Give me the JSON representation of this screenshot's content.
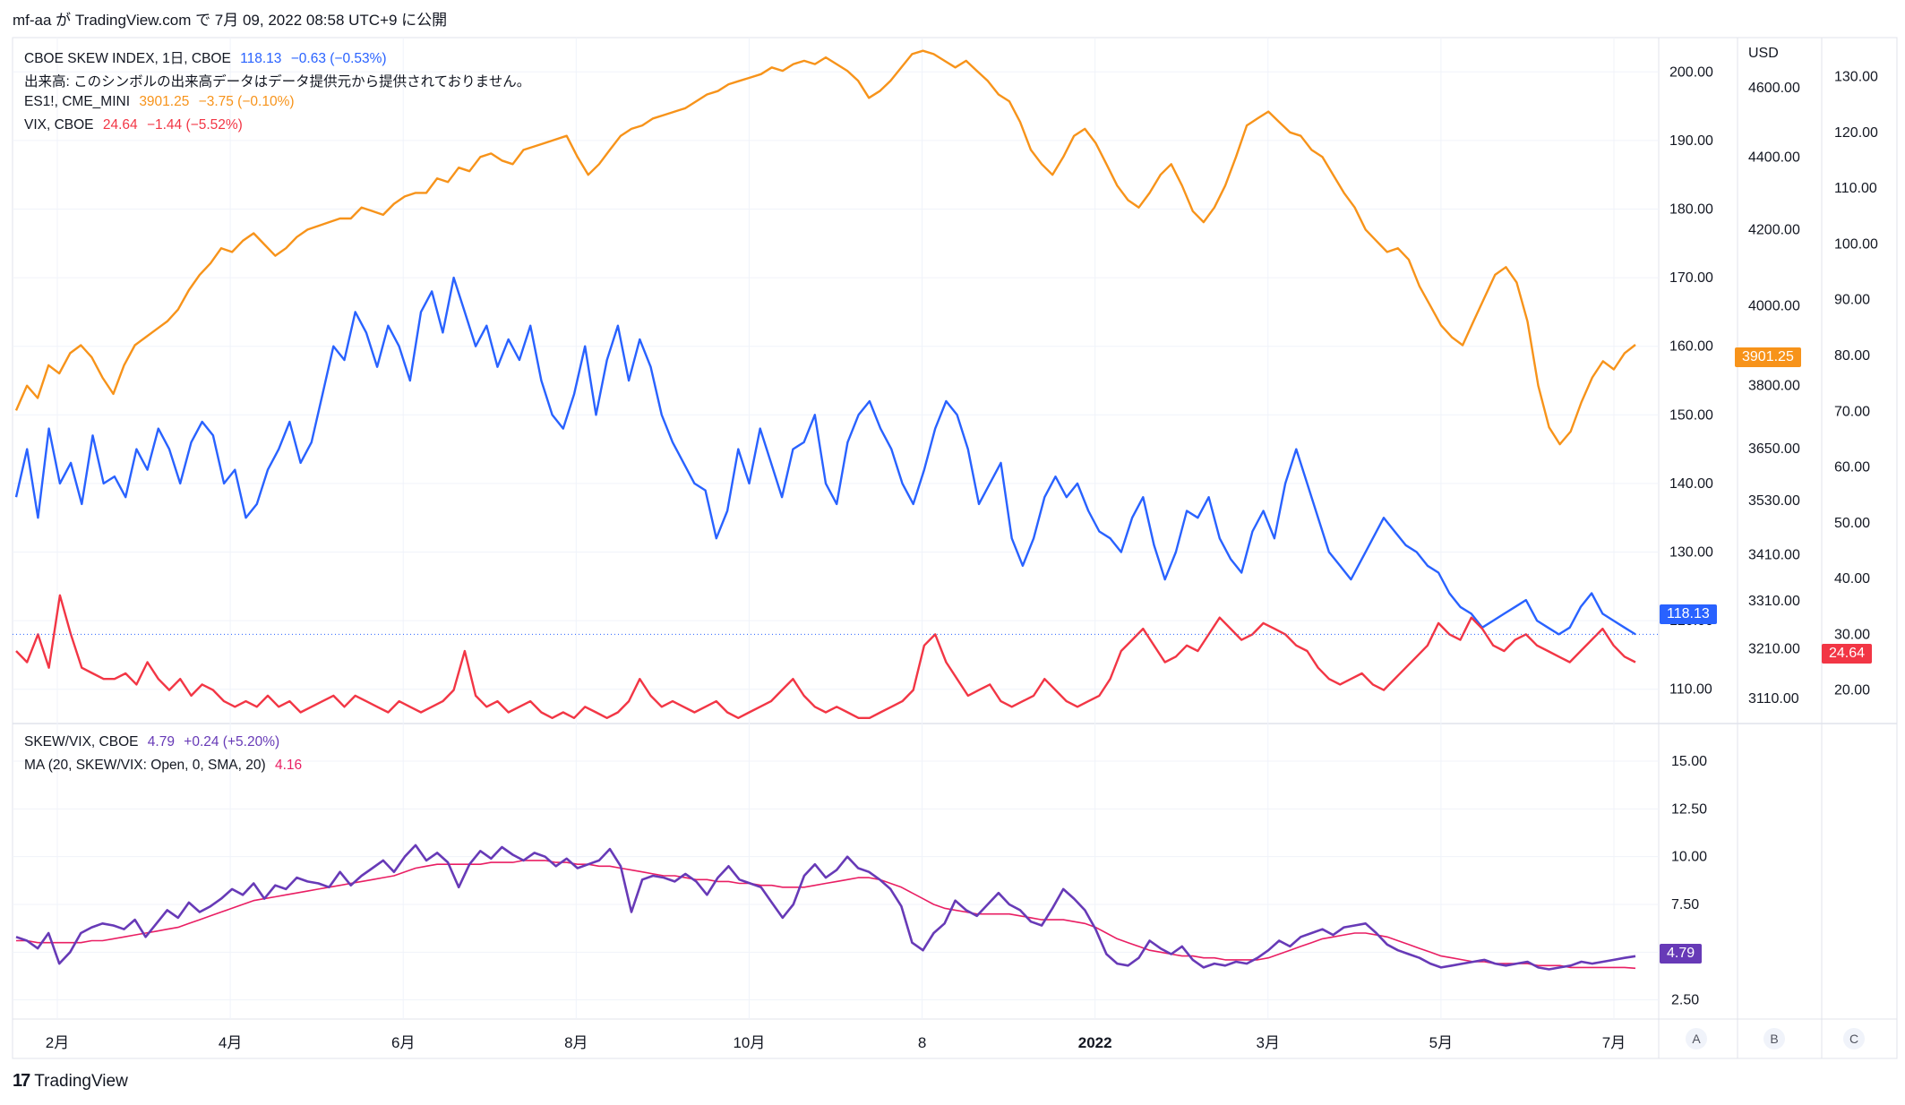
{
  "header": {
    "text": "mf-aa が TradingView.com で 7月 09, 2022 08:58 UTC+9 に公開"
  },
  "footer": {
    "brand": "TradingView",
    "logo_icon": "tradingview-logo-icon"
  },
  "legend": {
    "skew": {
      "name": "CBOE SKEW INDEX, 1日, CBOE",
      "value": "118.13",
      "change": "−0.63 (−0.53%)"
    },
    "volume_note": "出来高: このシンボルの出来高データはデータ提供元から提供されておりません。",
    "es": {
      "name": "ES1!, CME_MINI",
      "value": "3901.25",
      "change": "−3.75 (−0.10%)"
    },
    "vix": {
      "name": "VIX, CBOE",
      "value": "24.64",
      "change": "−1.44 (−5.52%)"
    },
    "ratio": {
      "name": "SKEW/VIX, CBOE",
      "value": "4.79",
      "change": "+0.24 (+5.20%)"
    },
    "ma": {
      "name": "MA (20, SKEW/VIX: Open, 0, SMA, 20)",
      "value": "4.16"
    }
  },
  "colors": {
    "skew": "#2962ff",
    "es": "#f7931a",
    "vix": "#f23645",
    "ratio": "#673ab7",
    "ma": "#e91e63",
    "grid": "#f0f3fa",
    "axis_text": "#131722"
  },
  "axes": {
    "usd_label": "USD",
    "skew_ticks": [
      "200.00",
      "190.00",
      "180.00",
      "170.00",
      "160.00",
      "150.00",
      "140.00",
      "130.00",
      "120.00",
      "110.00"
    ],
    "es_ticks": [
      "4600.00",
      "4400.00",
      "4200.00",
      "4000.00",
      "3800.00",
      "3650.00",
      "3530.00",
      "3410.00",
      "3310.00",
      "3210.00",
      "3110.00"
    ],
    "vix_ticks": [
      "130.00",
      "120.00",
      "110.00",
      "100.00",
      "90.00",
      "80.00",
      "70.00",
      "60.00",
      "50.00",
      "40.00",
      "30.00",
      "20.00"
    ],
    "ratio_ticks": [
      "15.00",
      "12.50",
      "10.00",
      "7.50",
      "5.00",
      "2.50"
    ],
    "time_labels": [
      "2月",
      "4月",
      "6月",
      "8月",
      "10月",
      "8",
      "2022",
      "3月",
      "5月",
      "7月"
    ],
    "pane_buttons": [
      "A",
      "B",
      "C"
    ]
  },
  "last_tags": {
    "skew": "118.13",
    "es": "3901.25",
    "vix": "24.64",
    "ratio": "4.79"
  },
  "chart_data": [
    {
      "type": "line",
      "title": "CBOE SKEW INDEX, ES1!, VIX",
      "x_range": [
        "2021-01",
        "2022-07"
      ],
      "series": [
        {
          "name": "CBOE SKEW INDEX",
          "axis": "left-price",
          "ylim": [
            105,
            205
          ],
          "values": [
            138,
            145,
            135,
            148,
            140,
            143,
            137,
            147,
            140,
            141,
            138,
            145,
            142,
            148,
            145,
            140,
            146,
            149,
            147,
            140,
            142,
            135,
            137,
            142,
            145,
            149,
            143,
            146,
            153,
            160,
            158,
            165,
            162,
            157,
            163,
            160,
            155,
            165,
            168,
            162,
            170,
            165,
            160,
            163,
            157,
            161,
            158,
            163,
            155,
            150,
            148,
            153,
            160,
            150,
            158,
            163,
            155,
            161,
            157,
            150,
            146,
            143,
            140,
            139,
            132,
            136,
            145,
            140,
            148,
            143,
            138,
            145,
            146,
            150,
            140,
            137,
            146,
            150,
            152,
            148,
            145,
            140,
            137,
            142,
            148,
            152,
            150,
            145,
            137,
            140,
            143,
            132,
            128,
            132,
            138,
            141,
            138,
            140,
            136,
            133,
            132,
            130,
            135,
            138,
            131,
            126,
            130,
            136,
            135,
            138,
            132,
            129,
            127,
            133,
            136,
            132,
            140,
            145,
            140,
            135,
            130,
            128,
            126,
            129,
            132,
            135,
            133,
            131,
            130,
            128,
            127,
            124,
            122,
            121,
            119,
            120,
            121,
            122,
            123,
            120,
            119,
            118,
            119,
            122,
            124,
            121,
            120,
            119,
            118
          ]
        },
        {
          "name": "ES1!",
          "axis": "middle-price",
          "ylim": [
            3060,
            4750
          ],
          "values": [
            3740,
            3800,
            3770,
            3850,
            3830,
            3880,
            3900,
            3870,
            3820,
            3780,
            3850,
            3900,
            3920,
            3940,
            3960,
            3990,
            4040,
            4080,
            4110,
            4150,
            4140,
            4170,
            4190,
            4160,
            4130,
            4150,
            4180,
            4200,
            4210,
            4220,
            4230,
            4230,
            4260,
            4250,
            4240,
            4270,
            4290,
            4300,
            4300,
            4340,
            4330,
            4370,
            4360,
            4400,
            4410,
            4390,
            4380,
            4420,
            4430,
            4440,
            4450,
            4460,
            4400,
            4350,
            4380,
            4420,
            4460,
            4480,
            4490,
            4510,
            4520,
            4530,
            4540,
            4560,
            4580,
            4590,
            4610,
            4620,
            4630,
            4640,
            4660,
            4650,
            4670,
            4680,
            4670,
            4690,
            4670,
            4650,
            4620,
            4570,
            4590,
            4620,
            4660,
            4700,
            4710,
            4700,
            4680,
            4660,
            4680,
            4650,
            4620,
            4580,
            4560,
            4500,
            4420,
            4380,
            4350,
            4400,
            4460,
            4480,
            4440,
            4380,
            4320,
            4280,
            4260,
            4300,
            4350,
            4380,
            4320,
            4250,
            4220,
            4260,
            4320,
            4400,
            4490,
            4510,
            4530,
            4500,
            4470,
            4460,
            4420,
            4400,
            4350,
            4300,
            4260,
            4200,
            4170,
            4140,
            4150,
            4120,
            4050,
            4000,
            3950,
            3920,
            3900,
            3960,
            4020,
            4080,
            4100,
            4060,
            3960,
            3800,
            3700,
            3660,
            3690,
            3760,
            3820,
            3860,
            3840,
            3880,
            3901
          ]
        },
        {
          "name": "VIX",
          "axis": "right-price",
          "ylim": [
            14,
            137
          ],
          "values": [
            27,
            25,
            30,
            24,
            37,
            30,
            24,
            23,
            22,
            22,
            23,
            21,
            25,
            22,
            20,
            22,
            19,
            21,
            20,
            18,
            17,
            18,
            17,
            19,
            17,
            18,
            16,
            17,
            18,
            19,
            17,
            19,
            18,
            17,
            16,
            18,
            17,
            16,
            17,
            18,
            20,
            27,
            19,
            17,
            18,
            16,
            17,
            18,
            16,
            15,
            16,
            15,
            17,
            16,
            15,
            16,
            18,
            22,
            19,
            17,
            18,
            17,
            16,
            17,
            18,
            16,
            15,
            16,
            17,
            18,
            20,
            22,
            19,
            17,
            16,
            17,
            16,
            15,
            15,
            16,
            17,
            18,
            20,
            28,
            30,
            25,
            22,
            19,
            20,
            21,
            18,
            17,
            18,
            19,
            22,
            20,
            18,
            17,
            18,
            19,
            22,
            27,
            29,
            31,
            28,
            25,
            26,
            28,
            27,
            30,
            33,
            31,
            29,
            30,
            32,
            31,
            30,
            28,
            27,
            24,
            22,
            21,
            22,
            23,
            21,
            20,
            22,
            24,
            26,
            28,
            32,
            30,
            29,
            33,
            31,
            28,
            27,
            29,
            30,
            28,
            27,
            26,
            25,
            27,
            29,
            31,
            28,
            26,
            25
          ]
        }
      ]
    },
    {
      "type": "line",
      "title": "SKEW/VIX, CBOE",
      "x_range": [
        "2021-01",
        "2022-07"
      ],
      "ylim": [
        1.5,
        16.5
      ],
      "series": [
        {
          "name": "SKEW/VIX",
          "values": [
            5.8,
            5.6,
            5.2,
            6.0,
            4.4,
            5.0,
            6.0,
            6.3,
            6.5,
            6.4,
            6.2,
            6.7,
            5.8,
            6.5,
            7.2,
            6.8,
            7.6,
            7.1,
            7.4,
            7.8,
            8.3,
            8.0,
            8.6,
            7.8,
            8.5,
            8.3,
            8.9,
            8.7,
            8.6,
            8.4,
            9.2,
            8.5,
            9.0,
            9.4,
            9.8,
            9.2,
            10.0,
            10.6,
            9.8,
            10.2,
            9.7,
            8.4,
            9.6,
            10.3,
            9.9,
            10.5,
            10.1,
            9.8,
            10.2,
            10.0,
            9.5,
            9.9,
            9.4,
            9.6,
            9.8,
            10.4,
            9.5,
            7.1,
            8.8,
            9.0,
            8.9,
            8.7,
            9.1,
            8.7,
            8.0,
            8.9,
            9.5,
            8.8,
            8.6,
            8.4,
            7.6,
            6.8,
            7.5,
            9.0,
            9.6,
            8.9,
            9.3,
            10.0,
            9.4,
            9.2,
            8.8,
            8.3,
            7.4,
            5.5,
            5.1,
            6.0,
            6.5,
            7.7,
            7.2,
            6.9,
            7.5,
            8.1,
            7.5,
            7.2,
            6.6,
            6.4,
            7.3,
            8.3,
            7.8,
            7.2,
            6.2,
            4.9,
            4.4,
            4.3,
            4.7,
            5.6,
            5.2,
            4.9,
            5.3,
            4.6,
            4.2,
            4.4,
            4.3,
            4.5,
            4.4,
            4.7,
            5.1,
            5.6,
            5.3,
            5.8,
            6.0,
            6.2,
            5.9,
            6.3,
            6.4,
            6.5,
            6.0,
            5.4,
            5.1,
            4.9,
            4.7,
            4.4,
            4.2,
            4.3,
            4.4,
            4.5,
            4.6,
            4.4,
            4.3,
            4.4,
            4.5,
            4.2,
            4.1,
            4.2,
            4.3,
            4.5,
            4.4,
            4.5,
            4.6,
            4.7,
            4.79
          ]
        },
        {
          "name": "MA (20, SKEW/VIX: Open, 0, SMA, 20)",
          "values": [
            5.6,
            5.6,
            5.5,
            5.5,
            5.5,
            5.5,
            5.5,
            5.6,
            5.6,
            5.7,
            5.8,
            5.9,
            6.0,
            6.1,
            6.2,
            6.3,
            6.5,
            6.7,
            6.9,
            7.1,
            7.3,
            7.5,
            7.7,
            7.8,
            7.9,
            8.0,
            8.1,
            8.2,
            8.3,
            8.4,
            8.5,
            8.6,
            8.7,
            8.8,
            8.9,
            9.0,
            9.2,
            9.4,
            9.5,
            9.6,
            9.6,
            9.6,
            9.6,
            9.6,
            9.7,
            9.7,
            9.7,
            9.8,
            9.8,
            9.8,
            9.7,
            9.7,
            9.6,
            9.6,
            9.5,
            9.5,
            9.4,
            9.3,
            9.2,
            9.1,
            9.0,
            9.0,
            8.9,
            8.8,
            8.8,
            8.7,
            8.7,
            8.6,
            8.6,
            8.5,
            8.5,
            8.4,
            8.4,
            8.4,
            8.5,
            8.6,
            8.7,
            8.8,
            8.9,
            8.9,
            8.8,
            8.6,
            8.4,
            8.1,
            7.8,
            7.5,
            7.3,
            7.2,
            7.1,
            7.0,
            7.0,
            7.0,
            7.0,
            6.9,
            6.8,
            6.7,
            6.7,
            6.7,
            6.6,
            6.5,
            6.3,
            6.0,
            5.7,
            5.5,
            5.3,
            5.1,
            5.0,
            4.9,
            4.8,
            4.8,
            4.7,
            4.7,
            4.6,
            4.6,
            4.6,
            4.6,
            4.7,
            4.9,
            5.1,
            5.3,
            5.5,
            5.7,
            5.8,
            5.9,
            6.0,
            6.0,
            5.9,
            5.8,
            5.6,
            5.4,
            5.2,
            5.0,
            4.8,
            4.7,
            4.6,
            4.5,
            4.5,
            4.4,
            4.4,
            4.4,
            4.4,
            4.3,
            4.3,
            4.3,
            4.2,
            4.2,
            4.2,
            4.2,
            4.2,
            4.2,
            4.16
          ]
        }
      ]
    }
  ]
}
